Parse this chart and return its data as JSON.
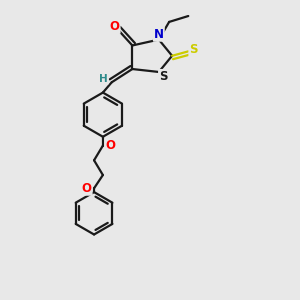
{
  "background_color": "#e8e8e8",
  "bond_color": "#1a1a1a",
  "bond_width": 1.6,
  "atom_colors": {
    "O": "#ff0000",
    "N": "#0000cc",
    "S_thioxo": "#cccc00",
    "S_ring": "#1a1a1a",
    "H": "#2e8b8b",
    "C": "#1a1a1a"
  },
  "font_size_atom": 8.5,
  "font_size_H": 7.5
}
